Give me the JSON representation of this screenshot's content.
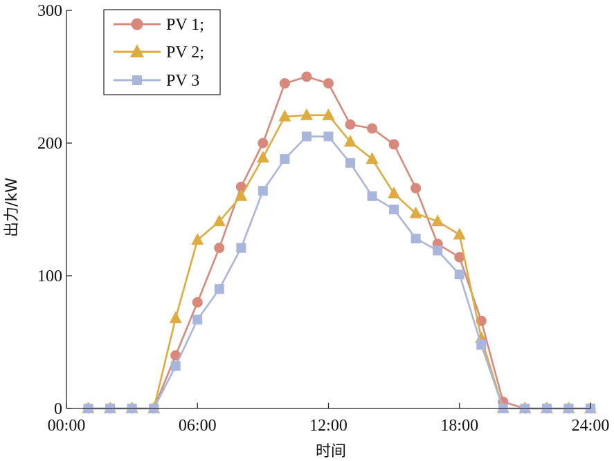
{
  "chart_data": {
    "type": "line",
    "title": "",
    "xlabel": "时间",
    "ylabel": "出力/kW",
    "x_ticks": [
      "00:00",
      "06:00",
      "12:00",
      "18:00",
      "24:00"
    ],
    "x_tick_hours": [
      0,
      6,
      12,
      18,
      24
    ],
    "y_ticks": [
      "0",
      "100",
      "200",
      "300"
    ],
    "xlim": [
      0,
      24
    ],
    "ylim": [
      0,
      300
    ],
    "grid": false,
    "legend_position": "top-left",
    "x": [
      1,
      2,
      3,
      4,
      5,
      6,
      7,
      8,
      9,
      10,
      11,
      12,
      13,
      14,
      15,
      16,
      17,
      18,
      19,
      20,
      21,
      22,
      23,
      24
    ],
    "series": [
      {
        "name": "PV 1;",
        "color": "#d9897c",
        "marker": "circle",
        "values": [
          0,
          0,
          0,
          0,
          40,
          80,
          121,
          167,
          200,
          245,
          250,
          245,
          214,
          211,
          199,
          166,
          124,
          114,
          66,
          5,
          0,
          0,
          0,
          0
        ]
      },
      {
        "name": "PV 2;",
        "color": "#ddab3f",
        "marker": "triangle",
        "values": [
          0,
          0,
          0,
          0,
          68,
          127,
          141,
          160,
          189,
          220,
          221,
          221,
          201,
          188,
          162,
          147,
          141,
          131,
          53,
          0,
          0,
          0,
          0,
          0
        ]
      },
      {
        "name": "PV 3",
        "color": "#a9b6dc",
        "marker": "square",
        "values": [
          0,
          0,
          0,
          0,
          32,
          67,
          90,
          121,
          164,
          188,
          205,
          205,
          185,
          160,
          150,
          128,
          119,
          101,
          48,
          0,
          0,
          0,
          0,
          0
        ]
      }
    ]
  }
}
